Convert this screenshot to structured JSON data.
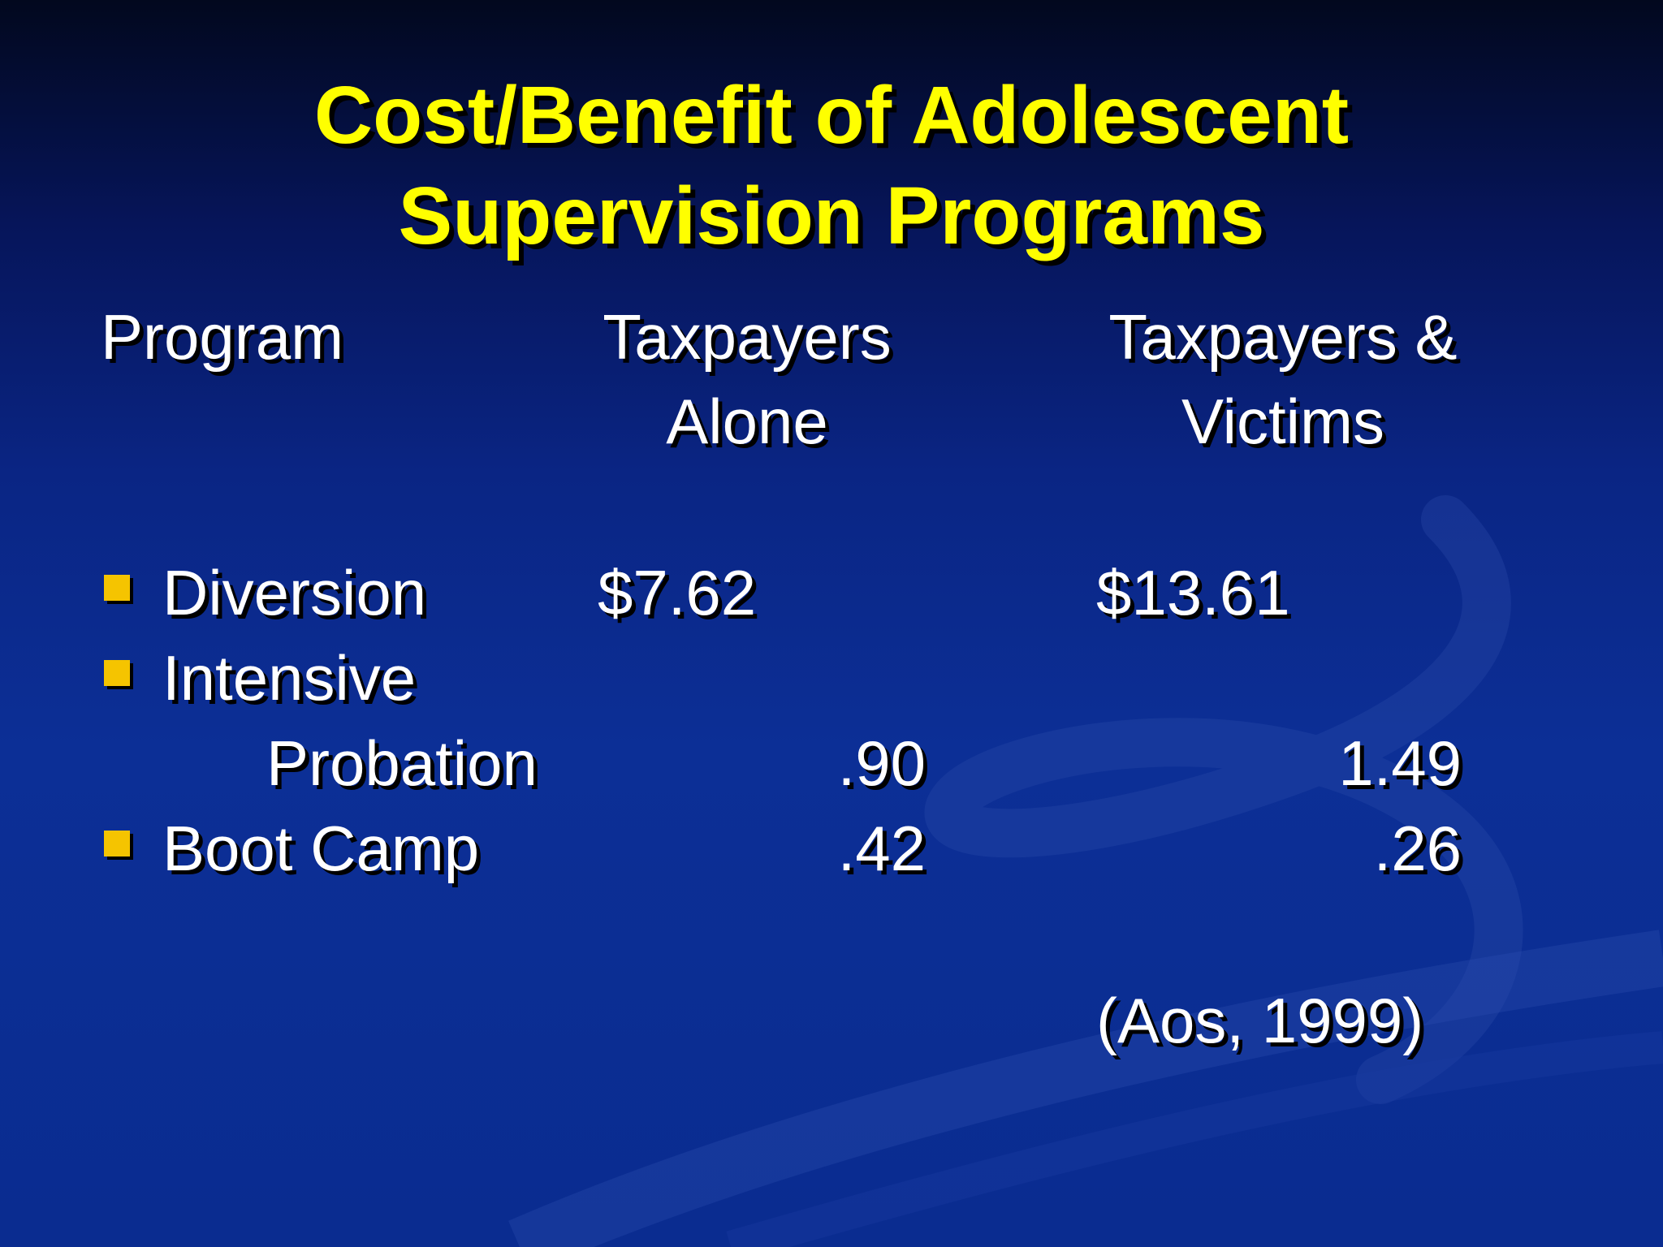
{
  "title": {
    "line1": "Cost/Benefit of Adolescent",
    "line2": "Supervision Programs"
  },
  "headers": {
    "program": "Program",
    "col1_line1": "Taxpayers",
    "col1_line2": "Alone",
    "col2_line1": "Taxpayers &",
    "col2_line2": "Victims"
  },
  "rows": [
    {
      "label": "Diversion",
      "col1": "$7.62",
      "col2": "$13.61"
    },
    {
      "label": "Intensive",
      "label_line2": "Probation",
      "col1": ".90",
      "col2": "1.49"
    },
    {
      "label": "Boot Camp",
      "col1": ".42",
      "col2": ".26"
    }
  ],
  "citation": "(Aos, 1999)",
  "colors": {
    "title": "#ffff00",
    "bullet": "#f5c400",
    "text": "#ffffff"
  }
}
